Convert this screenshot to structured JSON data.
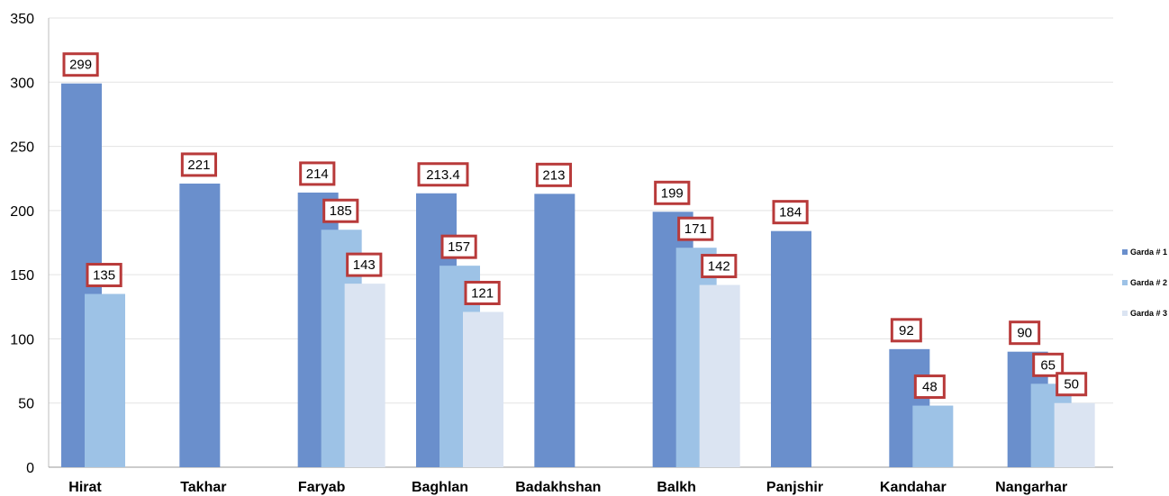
{
  "chart_data": {
    "type": "bar",
    "categories": [
      "Hirat",
      "Takhar",
      "Faryab",
      "Baghlan",
      "Badakhshan",
      "Balkh",
      "Panjshir",
      "Kandahar",
      "Nangarhar"
    ],
    "series": [
      {
        "name": "Garda # 1",
        "color": "#6a8fcc",
        "values": [
          299,
          221,
          214,
          213.4,
          213,
          199,
          184,
          92,
          90
        ],
        "labels": [
          "299",
          "221",
          "214",
          "213.4",
          "213",
          "199",
          "184",
          "92",
          "90"
        ]
      },
      {
        "name": "Garda # 2",
        "color": "#9dc2e6",
        "values": [
          135,
          null,
          185,
          157,
          null,
          171,
          null,
          48,
          65
        ],
        "labels": [
          "135",
          null,
          "185",
          "157",
          null,
          "171",
          null,
          "48",
          "65"
        ]
      },
      {
        "name": "Garda # 3",
        "color": "#dbe4f2",
        "values": [
          null,
          null,
          143,
          121,
          null,
          142,
          null,
          null,
          50
        ],
        "labels": [
          null,
          null,
          "143",
          "121",
          null,
          "142",
          null,
          null,
          "50"
        ]
      }
    ],
    "ylim": [
      0,
      350
    ],
    "yticks": [
      0,
      50,
      100,
      150,
      200,
      250,
      300,
      350
    ],
    "grid": true,
    "legend_position": "right",
    "label_box_color": "#b83a3a"
  }
}
